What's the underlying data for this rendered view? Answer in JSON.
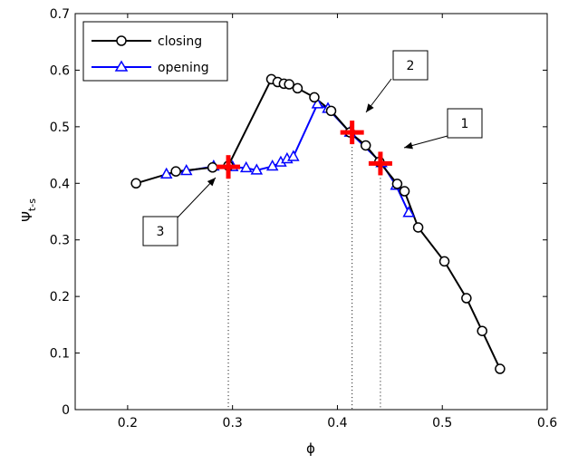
{
  "chart_data": {
    "type": "line",
    "xlabel": "ϕ",
    "ylabel": "Ψ",
    "ylabel_sub": "t-s",
    "xlim": [
      0.15,
      0.6
    ],
    "ylim": [
      0,
      0.7
    ],
    "xticks": [
      0.2,
      0.3,
      0.4,
      0.5,
      0.6
    ],
    "yticks": [
      0,
      0.1,
      0.2,
      0.3,
      0.4,
      0.5,
      0.6,
      0.7
    ],
    "xtick_labels": [
      "0.2",
      "0.3",
      "0.4",
      "0.5",
      "0.6"
    ],
    "ytick_labels": [
      "0",
      "0.1",
      "0.2",
      "0.3",
      "0.4",
      "0.5",
      "0.6",
      "0.7"
    ],
    "grid": false,
    "legend_position": "top-left",
    "series": [
      {
        "name": "closing",
        "color": "#000000",
        "marker": "circle",
        "x": [
          0.208,
          0.246,
          0.281,
          0.296,
          0.337,
          0.343,
          0.349,
          0.354,
          0.362,
          0.378,
          0.394,
          0.412,
          0.427,
          0.44,
          0.457,
          0.464,
          0.477,
          0.502,
          0.523,
          0.538,
          0.555
        ],
        "y": [
          0.4,
          0.421,
          0.428,
          0.431,
          0.584,
          0.579,
          0.576,
          0.575,
          0.568,
          0.552,
          0.528,
          0.49,
          0.467,
          0.438,
          0.399,
          0.386,
          0.322,
          0.262,
          0.197,
          0.139,
          0.072
        ]
      },
      {
        "name": "opening",
        "color": "#0000ff",
        "marker": "triangle",
        "x": [
          0.237,
          0.256,
          0.282,
          0.3,
          0.313,
          0.323,
          0.338,
          0.346,
          0.352,
          0.358,
          0.381,
          0.391,
          0.412,
          0.442,
          0.456,
          0.468
        ],
        "y": [
          0.416,
          0.422,
          0.43,
          0.429,
          0.427,
          0.423,
          0.43,
          0.437,
          0.443,
          0.447,
          0.54,
          0.532,
          0.49,
          0.436,
          0.396,
          0.348
        ]
      }
    ],
    "operating_points": [
      {
        "label": "1",
        "x": 0.441,
        "y": 0.435
      },
      {
        "label": "2",
        "x": 0.414,
        "y": 0.49
      },
      {
        "label": "3",
        "x": 0.296,
        "y": 0.429
      }
    ],
    "marker_color": "#ff0000"
  }
}
